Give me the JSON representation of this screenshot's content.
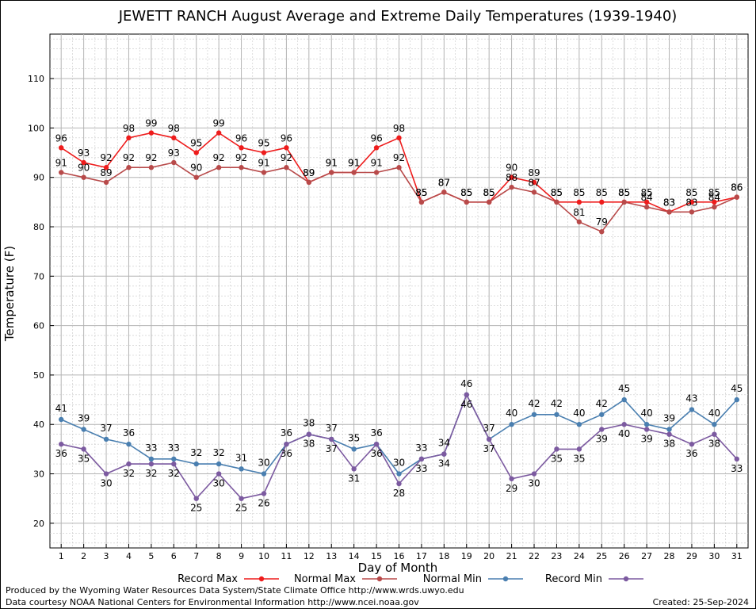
{
  "chart_data": {
    "type": "line",
    "title": "JEWETT RANCH August Average and Extreme Daily Temperatures (1939-1940)",
    "xlabel": "Day of Month",
    "ylabel": "Temperature (F)",
    "xlim": [
      0.5,
      31.5
    ],
    "ylim": [
      15,
      119
    ],
    "yticks": [
      20,
      30,
      40,
      50,
      60,
      70,
      80,
      90,
      100,
      110
    ],
    "grid": true,
    "legend_position": "bottom",
    "x": [
      1,
      2,
      3,
      4,
      5,
      6,
      7,
      8,
      9,
      10,
      11,
      12,
      13,
      14,
      15,
      16,
      17,
      18,
      19,
      20,
      21,
      22,
      23,
      24,
      25,
      26,
      27,
      28,
      29,
      30,
      31
    ],
    "series": [
      {
        "name": "Record Max",
        "color": "#ee1c1c",
        "values": [
          96,
          93,
          92,
          98,
          99,
          98,
          95,
          99,
          96,
          95,
          96,
          89,
          91,
          91,
          96,
          98,
          85,
          87,
          85,
          85,
          90,
          89,
          85,
          85,
          85,
          85,
          85,
          83,
          85,
          85,
          86
        ]
      },
      {
        "name": "Normal Max",
        "color": "#b84a4a",
        "values": [
          91,
          90,
          89,
          92,
          92,
          93,
          90,
          92,
          92,
          91,
          92,
          89,
          91,
          91,
          91,
          92,
          85,
          87,
          85,
          85,
          88,
          87,
          85,
          81,
          79,
          85,
          84,
          83,
          83,
          84,
          86
        ]
      },
      {
        "name": "Normal Min",
        "color": "#4a7fb0",
        "values": [
          41,
          39,
          37,
          36,
          33,
          33,
          32,
          32,
          31,
          30,
          36,
          38,
          37,
          35,
          36,
          30,
          33,
          34,
          46,
          37,
          40,
          42,
          42,
          40,
          42,
          45,
          40,
          39,
          43,
          40,
          45
        ]
      },
      {
        "name": "Record Min",
        "color": "#7c5aa0",
        "values": [
          36,
          35,
          30,
          32,
          32,
          32,
          25,
          30,
          25,
          26,
          36,
          38,
          37,
          31,
          36,
          28,
          33,
          34,
          46,
          37,
          29,
          30,
          35,
          35,
          39,
          40,
          39,
          38,
          36,
          38,
          33
        ]
      }
    ]
  },
  "footer": {
    "line1": "Produced by the Wyoming Water Resources Data System/State Climate Office http://www.wrds.uwyo.edu",
    "line2": "Data courtesy NOAA National Centers for Environmental Information http://www.ncei.noaa.gov",
    "created": "Created:  25-Sep-2024"
  }
}
